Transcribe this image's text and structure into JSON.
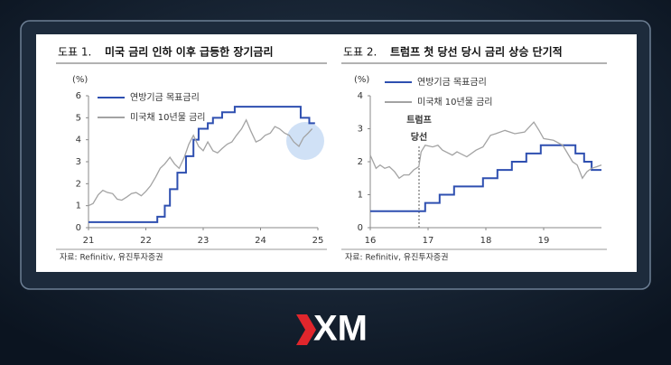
{
  "chart_data": [
    {
      "type": "line",
      "figure_label": "도표 1.",
      "title": "미국 금리 인하 이후 급등한 장기금리",
      "unit": "(%)",
      "xlim": [
        21,
        25
      ],
      "xticks": [
        21,
        22,
        23,
        24,
        25
      ],
      "ylim": [
        0,
        6
      ],
      "yticks": [
        0,
        1,
        2,
        3,
        4,
        5,
        6
      ],
      "series": [
        {
          "name": "연방기금 목표금리",
          "color": "#2e4fb0",
          "step": true,
          "x": [
            21,
            22.2,
            22.2,
            22.33,
            22.33,
            22.42,
            22.42,
            22.55,
            22.55,
            22.7,
            22.7,
            22.83,
            22.83,
            22.92,
            22.92,
            23.08,
            23.08,
            23.17,
            23.17,
            23.33,
            23.33,
            23.55,
            23.55,
            24.7,
            24.7,
            24.85,
            24.85,
            24.95
          ],
          "values": [
            0.25,
            0.25,
            0.5,
            0.5,
            1,
            1,
            1.75,
            1.75,
            2.5,
            2.5,
            3.25,
            3.25,
            4,
            4,
            4.5,
            4.5,
            4.75,
            4.75,
            5,
            5,
            5.25,
            5.25,
            5.5,
            5.5,
            5,
            5,
            4.75,
            4.75
          ]
        },
        {
          "name": "미국채 10년물 금리",
          "color": "#a3a3a3",
          "x": [
            21.0,
            21.08,
            21.17,
            21.25,
            21.33,
            21.42,
            21.5,
            21.58,
            21.67,
            21.75,
            21.83,
            21.92,
            22.0,
            22.08,
            22.17,
            22.25,
            22.33,
            22.42,
            22.5,
            22.58,
            22.67,
            22.75,
            22.83,
            22.92,
            23.0,
            23.08,
            23.17,
            23.25,
            23.33,
            23.42,
            23.5,
            23.58,
            23.67,
            23.75,
            23.83,
            23.92,
            24.0,
            24.08,
            24.17,
            24.25,
            24.33,
            24.42,
            24.5,
            24.58,
            24.67,
            24.75,
            24.83,
            24.9
          ],
          "values": [
            1.0,
            1.1,
            1.5,
            1.7,
            1.6,
            1.55,
            1.3,
            1.25,
            1.4,
            1.55,
            1.6,
            1.45,
            1.65,
            1.9,
            2.3,
            2.7,
            2.9,
            3.2,
            2.9,
            2.7,
            3.2,
            3.8,
            4.2,
            3.7,
            3.5,
            3.9,
            3.5,
            3.4,
            3.6,
            3.8,
            3.9,
            4.2,
            4.5,
            4.9,
            4.4,
            3.9,
            4.0,
            4.2,
            4.3,
            4.6,
            4.5,
            4.3,
            4.2,
            3.9,
            3.7,
            4.1,
            4.3,
            4.5
          ]
        }
      ],
      "source": "자료: Refinitiv, 유진투자증권"
    },
    {
      "type": "line",
      "figure_label": "도표 2.",
      "title": "트럼프 첫 당선 당시 금리 상승 단기적",
      "unit": "(%)",
      "xlim": [
        16,
        20
      ],
      "xticks": [
        16,
        17,
        18,
        19
      ],
      "ylim": [
        0,
        4
      ],
      "yticks": [
        0,
        1,
        2,
        3,
        4
      ],
      "series": [
        {
          "name": "연방기금 목표금리",
          "color": "#2e4fb0",
          "step": true,
          "x": [
            16,
            16.95,
            16.95,
            17.2,
            17.2,
            17.45,
            17.45,
            17.95,
            17.95,
            18.2,
            18.2,
            18.45,
            18.45,
            18.7,
            18.7,
            18.95,
            18.95,
            19.55,
            19.55,
            19.7,
            19.7,
            19.83,
            19.83,
            20
          ],
          "values": [
            0.5,
            0.5,
            0.75,
            0.75,
            1,
            1,
            1.25,
            1.25,
            1.5,
            1.5,
            1.75,
            1.75,
            2,
            2,
            2.25,
            2.25,
            2.5,
            2.5,
            2.25,
            2.25,
            2,
            2,
            1.75,
            1.75
          ]
        },
        {
          "name": "미국채 10년물 금리",
          "color": "#a3a3a3",
          "x": [
            16.0,
            16.05,
            16.1,
            16.17,
            16.25,
            16.33,
            16.42,
            16.5,
            16.58,
            16.67,
            16.75,
            16.84,
            16.88,
            16.95,
            17.08,
            17.17,
            17.25,
            17.42,
            17.5,
            17.67,
            17.83,
            17.95,
            18.08,
            18.17,
            18.33,
            18.5,
            18.67,
            18.83,
            18.92,
            19.0,
            19.17,
            19.33,
            19.5,
            19.58,
            19.67,
            19.75,
            19.83,
            19.92,
            20.0
          ],
          "values": [
            2.2,
            2.0,
            1.8,
            1.9,
            1.8,
            1.85,
            1.7,
            1.5,
            1.6,
            1.6,
            1.75,
            1.85,
            2.3,
            2.5,
            2.45,
            2.5,
            2.35,
            2.2,
            2.3,
            2.15,
            2.35,
            2.45,
            2.8,
            2.85,
            2.95,
            2.85,
            2.9,
            3.2,
            2.95,
            2.7,
            2.65,
            2.5,
            2.0,
            1.9,
            1.5,
            1.7,
            1.8,
            1.85,
            1.9
          ]
        }
      ],
      "annotation": [
        "트럼프",
        "당선"
      ],
      "source": "자료: Refinitiv, 유진투자증권"
    }
  ],
  "logo": "XM"
}
